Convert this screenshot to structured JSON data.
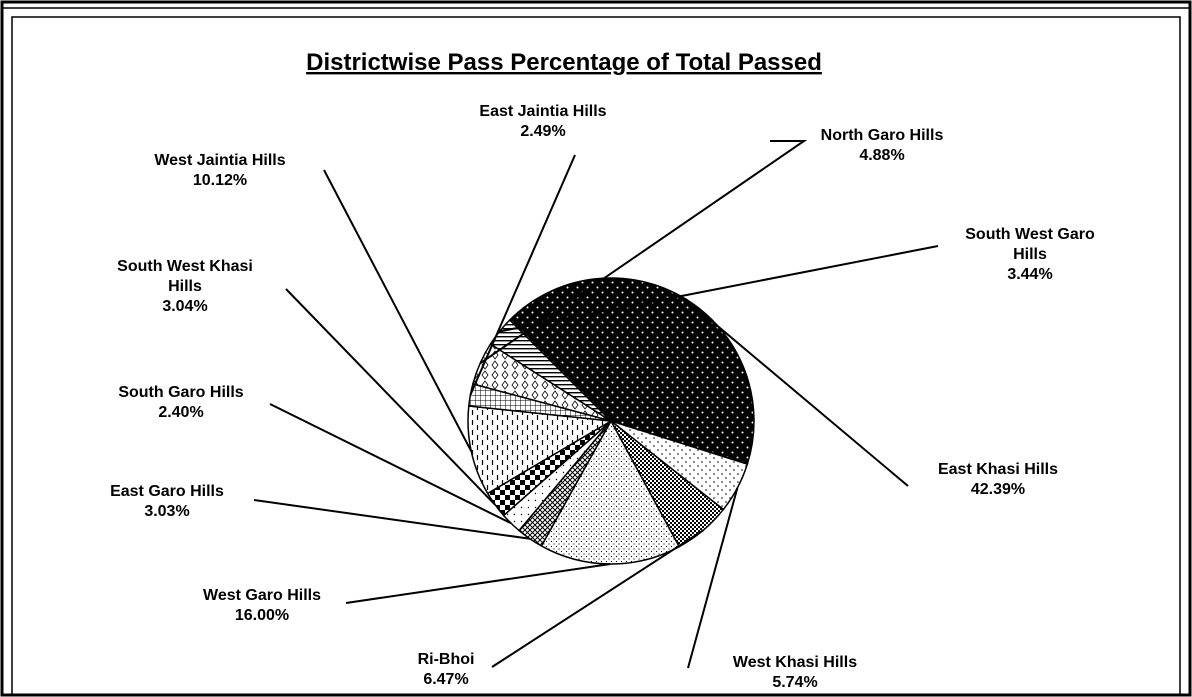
{
  "chart_data": {
    "type": "pie",
    "title": "Districtwise Pass Percentage of Total Passed",
    "slices": [
      {
        "label": [
          "North Garo Hills"
        ],
        "pct": "4.88%",
        "value": 4.88,
        "pattern": "pat-diamond"
      },
      {
        "label": [
          "South West Garo",
          "Hills"
        ],
        "pct": "3.44%",
        "value": 3.44,
        "pattern": "pat-hstripe"
      },
      {
        "label": [
          "East Khasi Hills"
        ],
        "pct": "42.39%",
        "value": 42.39,
        "pattern": "pat-darkdots"
      },
      {
        "label": [
          "West Khasi Hills"
        ],
        "pct": "5.74%",
        "value": 5.74,
        "pattern": "pat-lightdots"
      },
      {
        "label": [
          "Ri-Bhoi"
        ],
        "pct": "6.47%",
        "value": 6.47,
        "pattern": "pat-check"
      },
      {
        "label": [
          "West Garo Hills"
        ],
        "pct": "16.00%",
        "value": 16.0,
        "pattern": "pat-finedots"
      },
      {
        "label": [
          "East Garo Hills"
        ],
        "pct": "3.03%",
        "value": 3.03,
        "pattern": "pat-cross"
      },
      {
        "label": [
          "South Garo Hills"
        ],
        "pct": "2.40%",
        "value": 2.4,
        "pattern": "pat-sparse"
      },
      {
        "label": [
          "South West Khasi",
          "Hills"
        ],
        "pct": "3.04%",
        "value": 3.04,
        "pattern": "pat-bigcheck"
      },
      {
        "label": [
          "West Jaintia Hills"
        ],
        "pct": "10.12%",
        "value": 10.12,
        "pattern": "pat-vdash"
      },
      {
        "label": [
          "East Jaintia Hills"
        ],
        "pct": "2.49%",
        "value": 2.49,
        "pattern": "pat-grid"
      }
    ]
  }
}
